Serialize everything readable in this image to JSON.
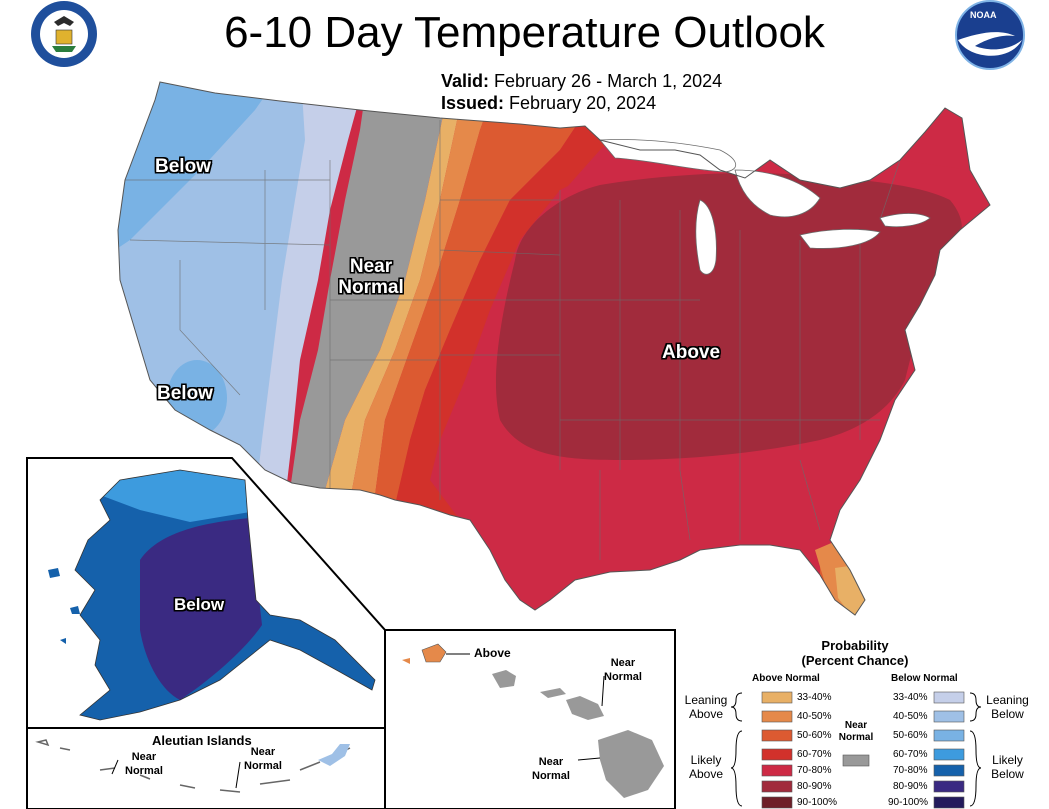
{
  "header": {
    "title": "6-10 Day Temperature Outlook",
    "valid_label": "Valid:",
    "valid_value": "February 26 - March 1, 2024",
    "issued_label": "Issued:",
    "issued_value": "February 20, 2024"
  },
  "map_labels": {
    "below_northwest": "Below",
    "below_southwest": "Below",
    "near_normal_1": "Near",
    "near_normal_2": "Normal",
    "above": "Above",
    "alaska_below": "Below"
  },
  "hawaii": {
    "above": "Above",
    "near_normal_1_a": "Near",
    "near_normal_1_b": "Normal",
    "near_normal_2_a": "Near",
    "near_normal_2_b": "Normal"
  },
  "aleutian": {
    "title": "Aleutian Islands",
    "near_normal_1_a": "Near",
    "near_normal_1_b": "Normal",
    "near_normal_2_a": "Near",
    "near_normal_2_b": "Normal"
  },
  "legend": {
    "title_1": "Probability",
    "title_2": "(Percent Chance)",
    "above_header": "Above Normal",
    "below_header": "Below Normal",
    "leaning_above_1": "Leaning",
    "leaning_above_2": "Above",
    "likely_above_1": "Likely",
    "likely_above_2": "Above",
    "leaning_below_1": "Leaning",
    "leaning_below_2": "Below",
    "likely_below_1": "Likely",
    "likely_below_2": "Below",
    "near_normal_1": "Near",
    "near_normal_2": "Normal",
    "above_items": [
      {
        "label": "33-40%",
        "color": "#e8b066"
      },
      {
        "label": "40-50%",
        "color": "#e5894a"
      },
      {
        "label": "50-60%",
        "color": "#dc5a31"
      },
      {
        "label": "60-70%",
        "color": "#d2312b"
      },
      {
        "label": "70-80%",
        "color": "#cd2a45"
      },
      {
        "label": "80-90%",
        "color": "#a12b3c"
      },
      {
        "label": "90-100%",
        "color": "#6e1f28"
      }
    ],
    "below_items": [
      {
        "label": "33-40%",
        "color": "#c5cfe9"
      },
      {
        "label": "40-50%",
        "color": "#9fc0e6"
      },
      {
        "label": "50-60%",
        "color": "#79b2e4"
      },
      {
        "label": "60-70%",
        "color": "#3d9bde"
      },
      {
        "label": "70-80%",
        "color": "#1561ab"
      },
      {
        "label": "80-90%",
        "color": "#3a2a82"
      },
      {
        "label": "90-100%",
        "color": "#231b5c"
      }
    ],
    "near_color": "#999999"
  }
}
